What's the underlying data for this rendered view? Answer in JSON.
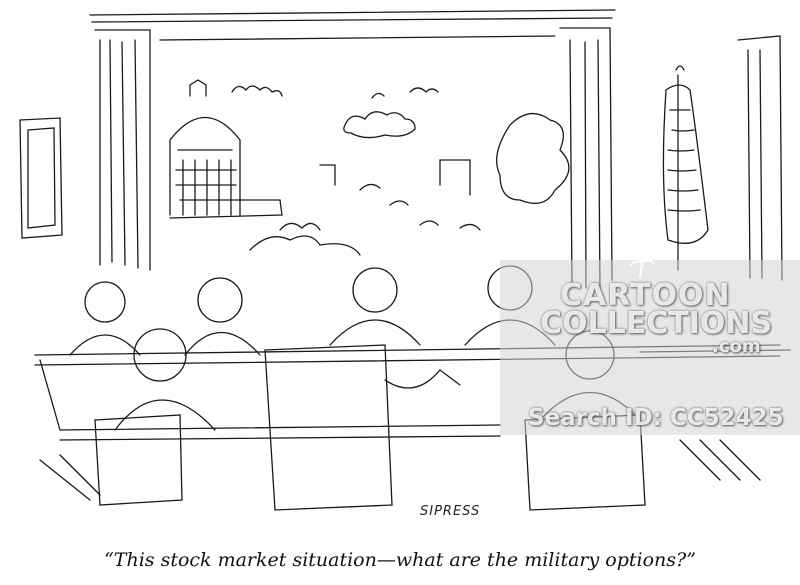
{
  "caption": "“This stock market situation—what are the military options?”",
  "signature": "SIPRESS",
  "watermark": {
    "line1": "CARTOON",
    "line2": "COLLECTIONS",
    "line3": ".com",
    "search_id": "Search ID: CC52425"
  },
  "colors": {
    "ink": "#1a1a1a",
    "paper": "#ffffff",
    "watermark_panel": "#cfcfcf"
  }
}
